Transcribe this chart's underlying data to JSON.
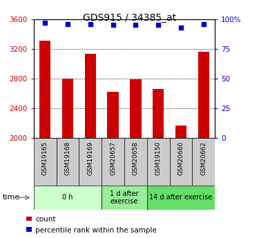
{
  "title": "GDS915 / 34385_at",
  "samples": [
    "GSM19165",
    "GSM19168",
    "GSM19169",
    "GSM20657",
    "GSM20658",
    "GSM19150",
    "GSM20660",
    "GSM20662"
  ],
  "counts": [
    3310,
    2800,
    3130,
    2620,
    2790,
    2660,
    2170,
    3160
  ],
  "percentiles": [
    97,
    96,
    96,
    95,
    95,
    95,
    93,
    96
  ],
  "time_groups": [
    {
      "label": "0 h",
      "start": 0,
      "end": 3,
      "color": "#ccffcc"
    },
    {
      "label": "1 d after\nexercise",
      "start": 3,
      "end": 5,
      "color": "#99ee99"
    },
    {
      "label": "14 d after exercise",
      "start": 5,
      "end": 8,
      "color": "#66dd66"
    }
  ],
  "ylim_left": [
    2000,
    3600
  ],
  "ylim_right": [
    0,
    100
  ],
  "yticks_left": [
    2000,
    2400,
    2800,
    3200,
    3600
  ],
  "yticks_right": [
    0,
    25,
    50,
    75,
    100
  ],
  "bar_color": "#cc0000",
  "scatter_color": "#0000cc",
  "bar_width": 0.5,
  "tick_label_color_left": "#cc0000",
  "tick_label_color_right": "#0000cc",
  "legend_count_label": "count",
  "legend_pct_label": "percentile rank within the sample",
  "sample_box_color": "#cccccc",
  "grid_yticks": [
    2400,
    2800,
    3200
  ]
}
